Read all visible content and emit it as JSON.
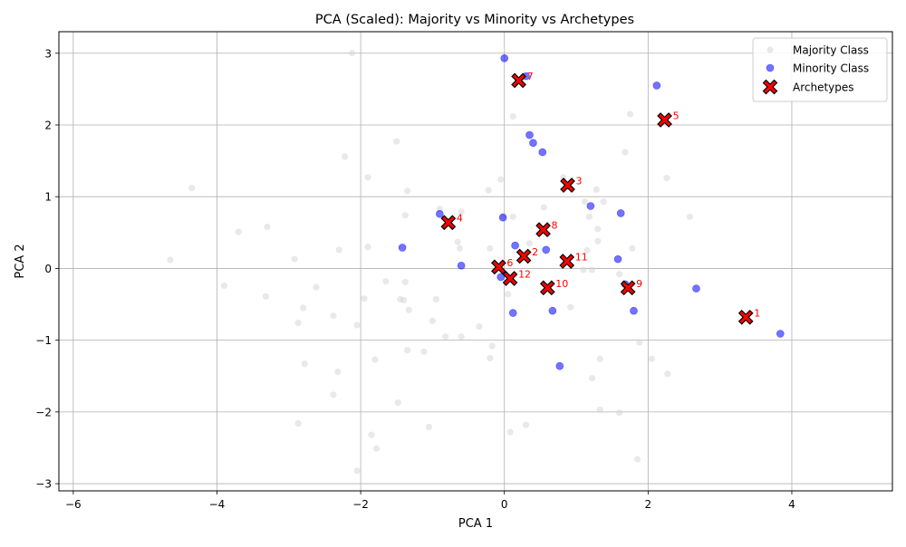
{
  "chart_data": {
    "type": "scatter",
    "title": "PCA (Scaled): Majority vs Minority vs Archetypes",
    "xlabel": "PCA 1",
    "ylabel": "PCA 2",
    "xlim": [
      -6.2,
      5.4
    ],
    "ylim": [
      -3.1,
      3.3
    ],
    "xticks": [
      -6,
      -4,
      -2,
      0,
      2,
      4
    ],
    "yticks": [
      -3,
      -2,
      -1,
      0,
      1,
      2,
      3
    ],
    "xtick_labels": [
      "−6",
      "−4",
      "−2",
      "0",
      "2",
      "4"
    ],
    "ytick_labels": [
      "−3",
      "−2",
      "−1",
      "0",
      "1",
      "2",
      "3"
    ],
    "grid": true,
    "legend_position": "top-right",
    "colors": {
      "majority": "#d3d3d3",
      "minority": "#0000ff",
      "archetype_fill": "#ff0000",
      "archetype_edge": "#000000",
      "archetype_label": "#ff0000",
      "grid": "#b0b0b0"
    },
    "series": [
      {
        "name": "Majority Class",
        "points": [
          [
            -2.12,
            3.0
          ],
          [
            0.12,
            2.12
          ],
          [
            1.75,
            2.15
          ],
          [
            -1.5,
            1.77
          ],
          [
            -2.22,
            1.56
          ],
          [
            1.68,
            1.62
          ],
          [
            -1.9,
            1.27
          ],
          [
            -0.05,
            1.24
          ],
          [
            0.82,
            1.27
          ],
          [
            2.26,
            1.26
          ],
          [
            -4.35,
            1.12
          ],
          [
            -1.35,
            1.08
          ],
          [
            -0.22,
            1.09
          ],
          [
            1.28,
            1.1
          ],
          [
            1.12,
            0.93
          ],
          [
            1.38,
            0.93
          ],
          [
            0.55,
            0.85
          ],
          [
            -0.9,
            0.83
          ],
          [
            -0.6,
            0.79
          ],
          [
            -1.38,
            0.74
          ],
          [
            0.12,
            0.72
          ],
          [
            1.18,
            0.72
          ],
          [
            2.58,
            0.72
          ],
          [
            -0.02,
            0.73
          ],
          [
            -3.3,
            0.58
          ],
          [
            -3.7,
            0.51
          ],
          [
            1.3,
            0.55
          ],
          [
            -0.65,
            0.37
          ],
          [
            1.3,
            0.38
          ],
          [
            0.35,
            0.35
          ],
          [
            -1.9,
            0.3
          ],
          [
            -2.3,
            0.26
          ],
          [
            -0.62,
            0.28
          ],
          [
            -0.2,
            0.28
          ],
          [
            1.15,
            0.25
          ],
          [
            1.78,
            0.28
          ],
          [
            -4.65,
            0.12
          ],
          [
            -2.92,
            0.13
          ],
          [
            0.82,
            0.07
          ],
          [
            1.1,
            -0.02
          ],
          [
            1.22,
            -0.02
          ],
          [
            1.6,
            -0.08
          ],
          [
            -3.9,
            -0.24
          ],
          [
            -2.62,
            -0.26
          ],
          [
            -1.65,
            -0.18
          ],
          [
            -1.38,
            -0.19
          ],
          [
            0.05,
            -0.36
          ],
          [
            -3.32,
            -0.39
          ],
          [
            -1.95,
            -0.42
          ],
          [
            -1.45,
            -0.43
          ],
          [
            -1.4,
            -0.44
          ],
          [
            -0.95,
            -0.43
          ],
          [
            -2.8,
            -0.55
          ],
          [
            -1.33,
            -0.58
          ],
          [
            0.92,
            -0.54
          ],
          [
            -2.38,
            -0.66
          ],
          [
            -2.87,
            -0.76
          ],
          [
            -2.05,
            -0.79
          ],
          [
            -1.0,
            -0.73
          ],
          [
            -0.35,
            -0.81
          ],
          [
            -0.82,
            -0.95
          ],
          [
            -0.6,
            -0.95
          ],
          [
            1.88,
            -1.03
          ],
          [
            -0.17,
            -1.08
          ],
          [
            -1.35,
            -1.14
          ],
          [
            -1.12,
            -1.16
          ],
          [
            -0.2,
            -1.25
          ],
          [
            -1.8,
            -1.27
          ],
          [
            1.33,
            -1.26
          ],
          [
            2.05,
            -1.26
          ],
          [
            -2.78,
            -1.33
          ],
          [
            -2.32,
            -1.44
          ],
          [
            2.27,
            -1.47
          ],
          [
            1.22,
            -1.53
          ],
          [
            -2.38,
            -1.76
          ],
          [
            -1.48,
            -1.87
          ],
          [
            1.33,
            -1.97
          ],
          [
            1.6,
            -2.01
          ],
          [
            -2.87,
            -2.16
          ],
          [
            -1.05,
            -2.21
          ],
          [
            0.3,
            -2.18
          ],
          [
            0.08,
            -2.28
          ],
          [
            -1.85,
            -2.32
          ],
          [
            -1.78,
            -2.51
          ],
          [
            1.85,
            -2.66
          ],
          [
            -2.05,
            -2.82
          ]
        ]
      },
      {
        "name": "Minority Class",
        "points": [
          [
            0.0,
            2.93
          ],
          [
            0.3,
            2.68
          ],
          [
            2.12,
            2.55
          ],
          [
            0.35,
            1.86
          ],
          [
            0.4,
            1.75
          ],
          [
            0.53,
            1.62
          ],
          [
            1.2,
            0.87
          ],
          [
            -0.9,
            0.76
          ],
          [
            1.62,
            0.77
          ],
          [
            -0.02,
            0.71
          ],
          [
            0.15,
            0.32
          ],
          [
            -1.42,
            0.29
          ],
          [
            0.58,
            0.26
          ],
          [
            1.58,
            0.13
          ],
          [
            -0.6,
            0.04
          ],
          [
            -0.05,
            -0.12
          ],
          [
            1.68,
            -0.22
          ],
          [
            2.67,
            -0.28
          ],
          [
            0.12,
            -0.62
          ],
          [
            0.67,
            -0.59
          ],
          [
            1.8,
            -0.59
          ],
          [
            3.84,
            -0.91
          ],
          [
            0.77,
            -1.36
          ]
        ]
      },
      {
        "name": "Archetypes",
        "points": [
          [
            3.36,
            -0.68,
            "1"
          ],
          [
            0.27,
            0.17,
            "2"
          ],
          [
            0.88,
            1.16,
            "3"
          ],
          [
            -0.78,
            0.64,
            "4"
          ],
          [
            2.23,
            2.07,
            "5"
          ],
          [
            -0.08,
            0.02,
            "6"
          ],
          [
            0.2,
            2.62,
            "7"
          ],
          [
            0.54,
            0.54,
            "8"
          ],
          [
            1.72,
            -0.27,
            "9"
          ],
          [
            0.6,
            -0.27,
            "10"
          ],
          [
            0.87,
            0.1,
            "11"
          ],
          [
            0.08,
            -0.14,
            "12"
          ]
        ]
      }
    ]
  }
}
